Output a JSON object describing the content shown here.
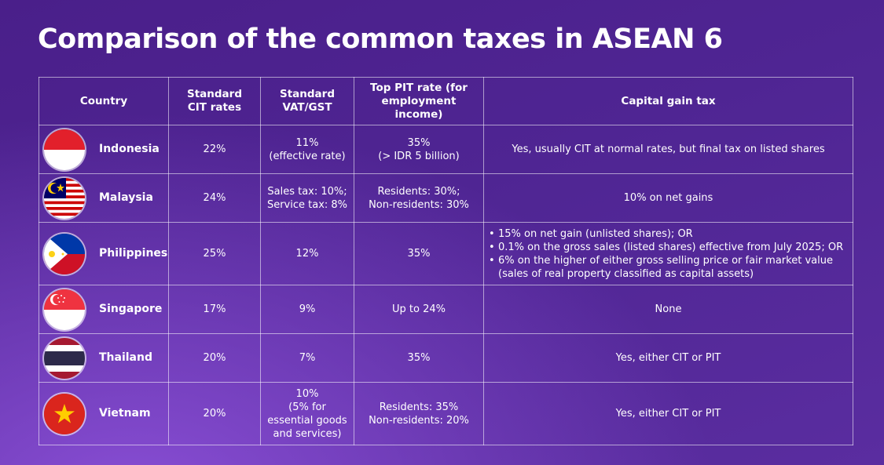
{
  "title": "Comparison of the common taxes in ASEAN 6",
  "headers": {
    "country": "Country",
    "cit": "Standard CIT rates",
    "vat": "Standard VAT/GST",
    "pit": "Top PIT rate (for employment income)",
    "cgt": "Capital gain tax"
  },
  "rows": [
    {
      "country": "Indonesia",
      "flag_icon": "indonesia-flag-icon",
      "cit": "22%",
      "vat_l1": "11%",
      "vat_l2": "(effective rate)",
      "pit_l1": "35%",
      "pit_l2": "(> IDR 5 billion)",
      "cgt": "Yes, usually CIT at normal rates, but final tax on listed shares"
    },
    {
      "country": "Malaysia",
      "flag_icon": "malaysia-flag-icon",
      "cit": "24%",
      "vat_l1": "Sales tax: 10%;",
      "vat_l2": "Service tax: 8%",
      "pit_l1": "Residents: 30%;",
      "pit_l2": "Non-residents: 30%",
      "cgt": "10% on net gains"
    },
    {
      "country": "Philippines",
      "flag_icon": "philippines-flag-icon",
      "cit": "25%",
      "vat": "12%",
      "pit": "35%",
      "cgt_items": [
        "15% on net gain (unlisted shares); OR",
        "0.1% on the gross sales (listed shares) effective from July 2025; OR",
        "6% on the higher of either gross selling price or fair market value"
      ],
      "cgt_cont": "(sales of real property classified as capital assets)"
    },
    {
      "country": "Singapore",
      "flag_icon": "singapore-flag-icon",
      "cit": "17%",
      "vat": "9%",
      "pit": "Up to 24%",
      "cgt": "None"
    },
    {
      "country": "Thailand",
      "flag_icon": "thailand-flag-icon",
      "cit": "20%",
      "vat": "7%",
      "pit": "35%",
      "cgt": "Yes, either CIT or PIT"
    },
    {
      "country": "Vietnam",
      "flag_icon": "vietnam-flag-icon",
      "cit": "20%",
      "vat_l1": "10%",
      "vat_l2": "(5% for",
      "vat_l3": "essential goods",
      "vat_l4": "and services)",
      "pit_l1": "Residents: 35%",
      "pit_l2": "Non-residents: 20%",
      "cgt": "Yes, either CIT or PIT"
    }
  ],
  "colors": {
    "background": "#4f2593",
    "accent": "#8a4fd6",
    "text": "#ffffff"
  }
}
